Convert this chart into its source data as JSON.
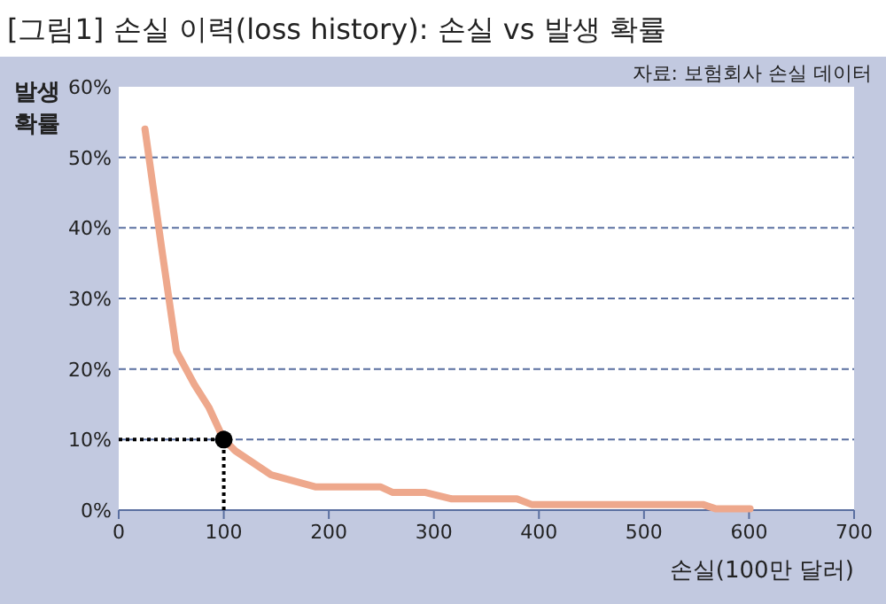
{
  "chart_data": {
    "type": "line",
    "title": "[그림1] 손실 이력(loss history): 손실 vs 발생 확률",
    "xlabel": "손실(100만 달러)",
    "ylabel": "발생 확률",
    "annotations": [
      "자료: 보험회사 손실 데이터"
    ],
    "series": [
      {
        "color": "#eea88c",
        "x": [
          25,
          41,
          55,
          72,
          86,
          100,
          111,
          128,
          145,
          187,
          249,
          261,
          292,
          317,
          379,
          393,
          556,
          568,
          601
        ],
        "values": [
          54,
          37,
          22.5,
          17.8,
          14.5,
          10,
          8.4,
          6.7,
          5,
          3.3,
          3.3,
          2.5,
          2.5,
          1.6,
          1.6,
          0.8,
          0.8,
          0.2,
          0.2
        ]
      },
      {
        "type": "scatter",
        "color": "#000000",
        "x": [
          100
        ],
        "values": [
          10
        ]
      }
    ],
    "ref_lines": [
      {
        "axis": "x",
        "value": 100,
        "color": "#000000",
        "line_style": "dotted"
      },
      {
        "axis": "y",
        "value": 10,
        "color": "#000000",
        "line_style": "dotted"
      }
    ],
    "xlim": [
      0,
      700
    ],
    "xticks": [
      0,
      100,
      200,
      300,
      400,
      500,
      600,
      700
    ],
    "ylim": [
      0,
      60
    ],
    "yticks": [
      {
        "value": 0,
        "label": "0%"
      },
      {
        "value": 10,
        "label": "10%"
      },
      {
        "value": 20,
        "label": "20%"
      },
      {
        "value": 30,
        "label": "30%"
      },
      {
        "value": 40,
        "label": "40%"
      },
      {
        "value": 50,
        "label": "50%"
      },
      {
        "value": 60,
        "label": "60%"
      }
    ],
    "grid": "y"
  }
}
